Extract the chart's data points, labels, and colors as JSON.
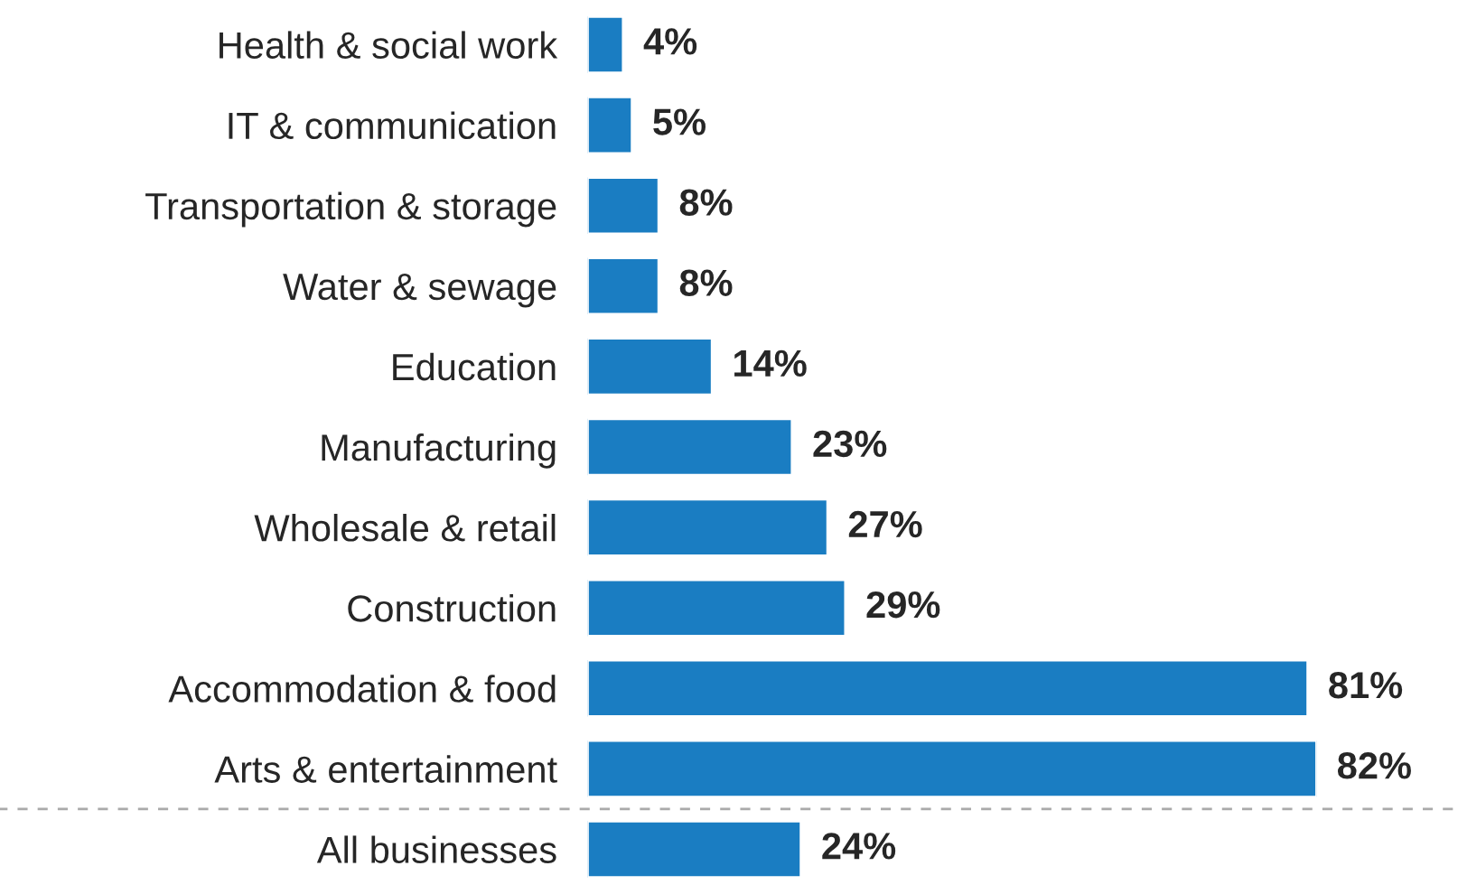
{
  "chart_data": {
    "type": "bar",
    "orientation": "horizontal",
    "relative": false,
    "categories": [
      "Health & social work",
      "IT & communication",
      "Transportation & storage",
      "Water & sewage",
      "Education",
      "Manufacturing",
      "Wholesale & retail",
      "Construction",
      "Accommodation & food",
      "Arts & entertainment",
      "All businesses"
    ],
    "values": [
      4,
      5,
      8,
      8,
      14,
      23,
      27,
      29,
      81,
      82,
      24
    ],
    "value_labels": [
      "4%",
      "5%",
      "8%",
      "8%",
      "14%",
      "23%",
      "27%",
      "29%",
      "81%",
      "82%",
      "24%"
    ],
    "color": "#1a7dc2",
    "xlim": [
      0,
      82
    ],
    "tick_labels": "y"
  }
}
